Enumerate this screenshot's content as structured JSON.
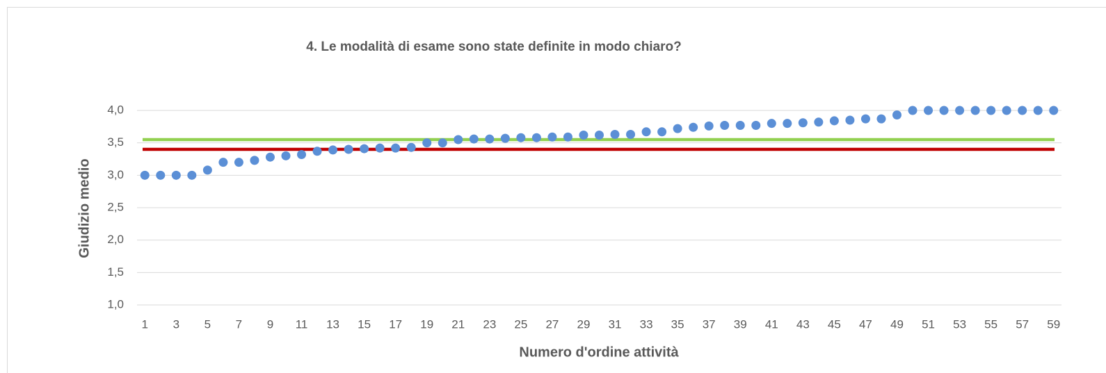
{
  "chart_data": {
    "type": "scatter",
    "title": "4. Le modalità di esame sono state definite in modo chiaro?",
    "x_label": "Numero d'ordine attività",
    "y_label": "Giudizio medio",
    "categories": [
      1,
      null,
      3,
      null,
      5,
      null,
      7,
      null,
      9,
      null,
      11,
      null,
      13,
      null,
      15,
      null,
      17,
      null,
      19,
      null,
      21,
      null,
      23,
      null,
      25,
      null,
      27,
      null,
      29,
      null,
      31,
      null,
      33,
      null,
      35,
      null,
      37,
      null,
      39,
      null,
      41,
      null,
      43,
      null,
      45,
      null,
      47,
      null,
      49,
      null,
      51,
      null,
      53,
      null,
      55,
      null,
      57,
      null,
      59
    ],
    "series": [
      {
        "color": "#5b8fd6",
        "values": [
          3.0,
          3.0,
          3.0,
          3.0,
          3.08,
          3.2,
          3.2,
          3.23,
          3.28,
          3.3,
          3.32,
          3.37,
          3.39,
          3.4,
          3.41,
          3.42,
          3.42,
          3.43,
          3.5,
          3.5,
          3.55,
          3.56,
          3.56,
          3.57,
          3.58,
          3.58,
          3.59,
          3.59,
          3.62,
          3.62,
          3.63,
          3.63,
          3.67,
          3.67,
          3.72,
          3.74,
          3.76,
          3.77,
          3.77,
          3.77,
          3.8,
          3.8,
          3.81,
          3.82,
          3.84,
          3.85,
          3.87,
          3.87,
          3.93,
          4.0,
          4.0,
          4.0,
          4.0,
          4.0,
          4.0,
          4.0,
          4.0,
          4.0,
          4.0
        ]
      }
    ],
    "reference_lines": [
      {
        "value": 3.55,
        "color": "#92d050"
      },
      {
        "value": 3.4,
        "color": "#c00000"
      }
    ],
    "ylim": [
      1.0,
      4.0
    ],
    "yticks": [
      {
        "value": 1.0,
        "label": "1,0"
      },
      {
        "value": 1.5,
        "label": "1,5"
      },
      {
        "value": 2.0,
        "label": "2,0"
      },
      {
        "value": 2.5,
        "label": "2,5"
      },
      {
        "value": 3.0,
        "label": "3,0"
      },
      {
        "value": 3.5,
        "label": "3,5"
      },
      {
        "value": 4.0,
        "label": "4,0"
      }
    ],
    "grid": true
  }
}
